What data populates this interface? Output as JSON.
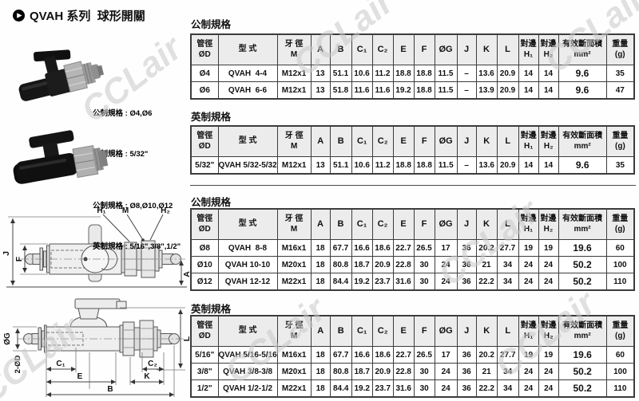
{
  "page": {
    "title": "QVAH 系列  球形開關",
    "watermark": "CCLair"
  },
  "products": [
    {
      "metric_label": "公制規格 : Ø4,Ø6",
      "imperial_label": "英制規格 : 5/32\""
    },
    {
      "metric_label": "公制規格 : Ø8,Ø10,Ø12",
      "imperial_label": "英制規格 : 5/16\",3/8\",1/2\""
    }
  ],
  "diagram": {
    "h1": "H₁",
    "m_label": "M",
    "h2": "H₂",
    "j": "J",
    "f": "F",
    "a": "A",
    "og": "ØG",
    "two_od": "2-ØD",
    "l": "L",
    "c1": "C₁",
    "e": "E",
    "c2": "C₂",
    "k": "K",
    "b": "B"
  },
  "table_headers": [
    "管徑\nØD",
    "型 式",
    "牙 徑\nM",
    "A",
    "B",
    "C₁",
    "C₂",
    "E",
    "F",
    "ØG",
    "J",
    "K",
    "L",
    "對邊\nH₁",
    "對邊\nH₂",
    "有效斷面積\nmm²",
    "重量\n(g)"
  ],
  "tables": [
    {
      "section": "公制規格",
      "rows": [
        [
          "Ø4",
          "QVAH  4-4",
          "M12x1",
          "13",
          "51.1",
          "10.6",
          "11.2",
          "18.8",
          "18.8",
          "11.5",
          "–",
          "13.6",
          "20.9",
          "14",
          "14",
          "9.6",
          "35"
        ],
        [
          "Ø6",
          "QVAH  6-6",
          "M12x1",
          "13",
          "51.8",
          "11.6",
          "11.6",
          "19.2",
          "18.8",
          "11.5",
          "–",
          "13.9",
          "20.9",
          "14",
          "14",
          "9.6",
          "47"
        ]
      ]
    },
    {
      "section": "英制規格",
      "rows": [
        [
          "5/32\"",
          "QVAH 5/32-5/32",
          "M12x1",
          "13",
          "51.1",
          "10.6",
          "11.2",
          "18.8",
          "18.8",
          "11.5",
          "–",
          "13.6",
          "20.9",
          "14",
          "14",
          "9.6",
          "35"
        ]
      ]
    },
    {
      "section": "公制規格",
      "rows": [
        [
          "Ø8",
          "QVAH  8-8",
          "M16x1",
          "18",
          "67.7",
          "16.6",
          "18.6",
          "22.7",
          "26.5",
          "17",
          "36",
          "20.2",
          "27.7",
          "19",
          "19",
          "19.6",
          "60"
        ],
        [
          "Ø10",
          "QVAH 10-10",
          "M20x1",
          "18",
          "80.8",
          "18.7",
          "20.9",
          "22.8",
          "30",
          "24",
          "36",
          "21",
          "34",
          "24",
          "24",
          "50.2",
          "100"
        ],
        [
          "Ø12",
          "QVAH 12-12",
          "M22x1",
          "18",
          "84.4",
          "19.2",
          "23.7",
          "31.6",
          "30",
          "24",
          "36",
          "22.2",
          "34",
          "24",
          "24",
          "50.2",
          "110"
        ]
      ]
    },
    {
      "section": "英制規格",
      "rows": [
        [
          "5/16\"",
          "QVAH 5/16-5/16",
          "M16x1",
          "18",
          "67.7",
          "16.6",
          "18.6",
          "22.7",
          "26.5",
          "17",
          "36",
          "20.2",
          "27.7",
          "19",
          "19",
          "19.6",
          "60"
        ],
        [
          "3/8\"",
          "QVAH 3/8-3/8",
          "M20x1",
          "18",
          "80.8",
          "18.7",
          "20.9",
          "22.8",
          "30",
          "24",
          "36",
          "21",
          "34",
          "24",
          "24",
          "50.2",
          "100"
        ],
        [
          "1/2\"",
          "QVAH 1/2-1/2",
          "M22x1",
          "18",
          "84.4",
          "19.2",
          "23.7",
          "31.6",
          "30",
          "24",
          "36",
          "22.2",
          "34",
          "24",
          "24",
          "50.2",
          "110"
        ]
      ]
    }
  ],
  "colors": {
    "header_bg": "#ececec",
    "table_border": "#3c3c3c",
    "watermark": "#c9c9c9"
  }
}
